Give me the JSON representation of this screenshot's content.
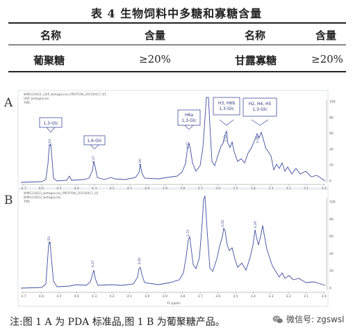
{
  "caption": "表 4  生物饲料中多糖和寡糖含量",
  "table": {
    "headers": [
      "名称",
      "含量",
      "名称",
      "含量"
    ],
    "row": [
      "葡聚糖",
      "≥20%",
      "甘露寡糖",
      "≥20%"
    ]
  },
  "spectra": {
    "panel_a": {
      "label": "A",
      "header_lines": [
        "WMG13021_USP_betaglucan_PROTON_20150417_01",
        "USP_betaglucan",
        "TMC"
      ],
      "annotations": [
        "1,3-Glc",
        "1,6-Glc",
        "H6a\n1,3-Glc",
        "H3, H6b\n1,3-Glc",
        "H2, H4, H5\n1,3-Glc"
      ],
      "peak_labels": [
        "4.53",
        "4.27",
        "4.00",
        "3.72",
        "3.52",
        "3.28"
      ],
      "x_ticks": [
        "4.7",
        "4.6",
        "4.5",
        "4.4",
        "4.3",
        "4.2",
        "4.1",
        "4.0",
        "3.9",
        "3.8",
        "3.7",
        "3.6",
        "3.5",
        "3.4",
        "3.3",
        "3.2",
        "3.1",
        "3.0"
      ],
      "y_ticks": [
        "100",
        "80",
        "60",
        "40",
        "20",
        "0"
      ]
    },
    "panel_b": {
      "label": "B",
      "header_lines": [
        "WMG13023_betaglucan_PROTON_20150417_01",
        "WMG13023_betaglucan",
        "TMC"
      ],
      "peak_labels": [
        "4.53",
        "4.27",
        "4.00",
        "3.72",
        "3.52",
        "3.29"
      ],
      "x_ticks": [
        "4.7",
        "4.6",
        "4.5",
        "4.4",
        "4.3",
        "4.2",
        "4.1",
        "4.0",
        "3.9",
        "3.8",
        "3.7",
        "3.6",
        "3.5",
        "3.4",
        "3.3",
        "3.2",
        "3.1",
        "3.0"
      ],
      "x_label": "f1 (ppm)",
      "y_ticks": [
        "100",
        "80",
        "60",
        "40",
        "20",
        "0"
      ]
    }
  },
  "note": "注:图 1 A 为 PDA 标准品,图 1 B 为葡聚糖产品。",
  "watermark": {
    "icon": "wechat-icon",
    "text": "微信号: zgswsl"
  }
}
